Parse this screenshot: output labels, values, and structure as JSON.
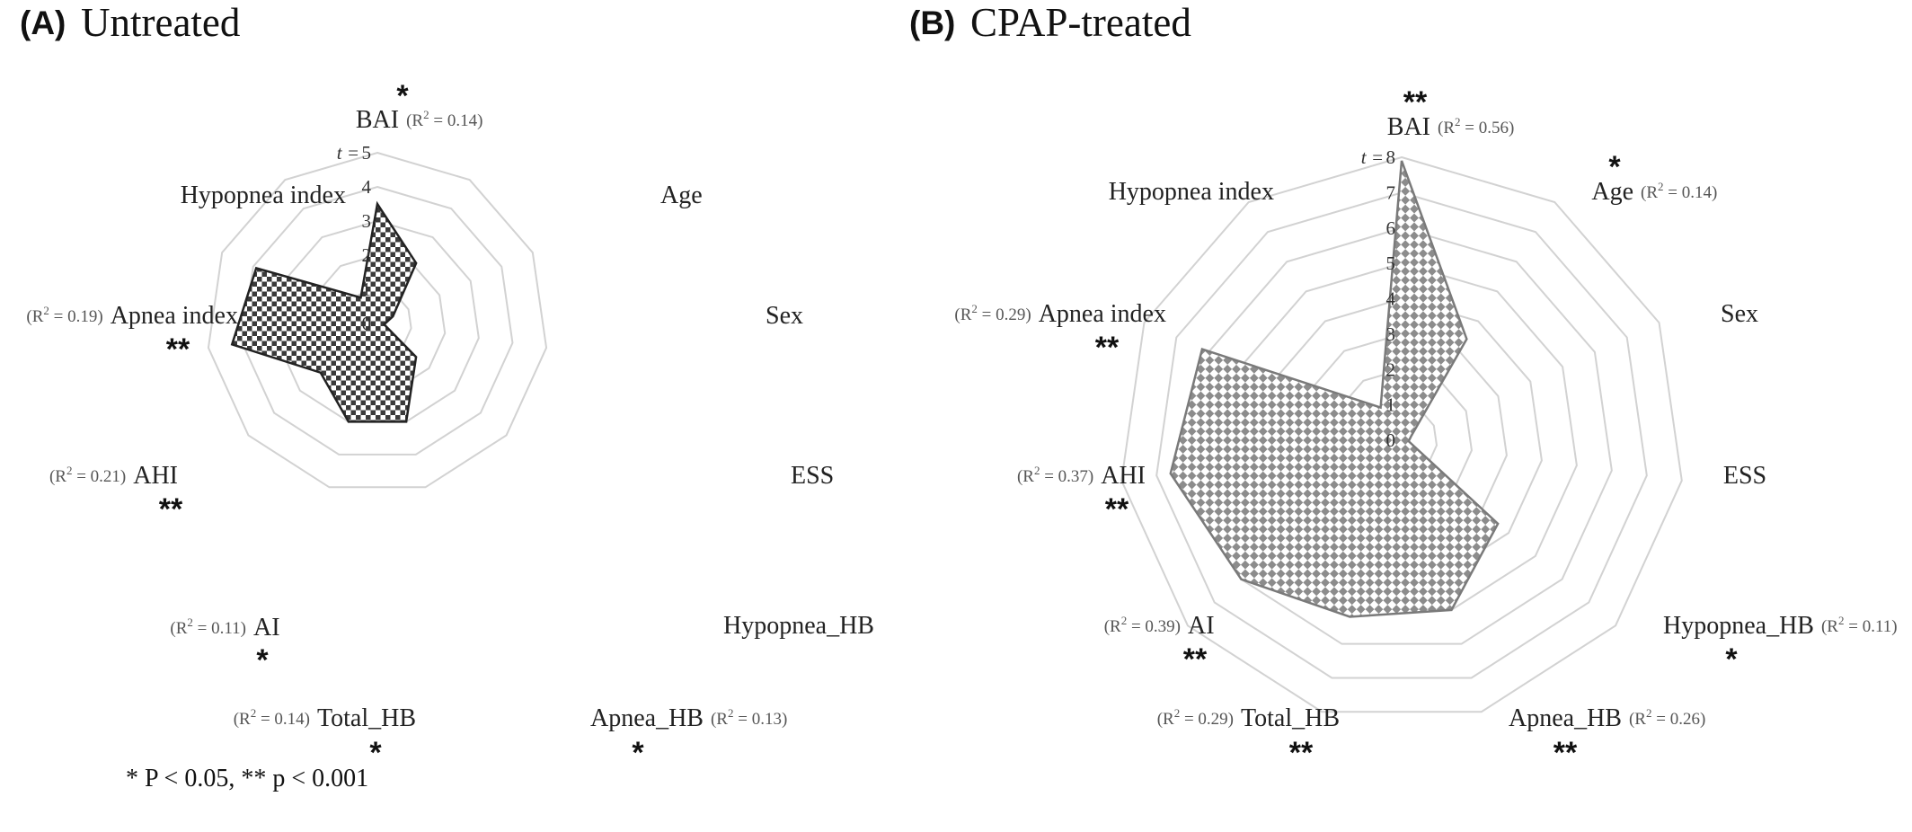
{
  "chart_data": [
    {
      "type": "radar",
      "panel_letter": "(A)",
      "title": "Untreated",
      "scale_prefix": "t =",
      "rlim": [
        0,
        5
      ],
      "ticks": [
        "0",
        "1",
        "2",
        "3",
        "4",
        "5"
      ],
      "grid": true,
      "fill_color": "#3a3a3a",
      "axes": [
        {
          "label": "BAI",
          "value": 3.5,
          "r2": "0.14",
          "sig": "*"
        },
        {
          "label": "Age",
          "value": 2.1,
          "r2": "",
          "sig": ""
        },
        {
          "label": "Sex",
          "value": 0.5,
          "r2": "",
          "sig": ""
        },
        {
          "label": "ESS",
          "value": 0.2,
          "r2": "",
          "sig": ""
        },
        {
          "label": "Hypopnea_HB",
          "value": 1.5,
          "r2": "",
          "sig": ""
        },
        {
          "label": "Apnea_HB",
          "value": 3.0,
          "r2": "0.13",
          "sig": "*"
        },
        {
          "label": "Total_HB",
          "value": 3.0,
          "r2": "0.14",
          "sig": "*"
        },
        {
          "label": "AI",
          "value": 2.2,
          "r2": "0.11",
          "sig": "*"
        },
        {
          "label": "AHI",
          "value": 4.3,
          "r2": "0.21",
          "sig": "**"
        },
        {
          "label": "Apnea index",
          "value": 3.9,
          "r2": "0.19",
          "sig": "**"
        },
        {
          "label": "Hypopnea index",
          "value": 0.9,
          "r2": "",
          "sig": ""
        }
      ]
    },
    {
      "type": "radar",
      "panel_letter": "(B)",
      "title": "CPAP-treated",
      "scale_prefix": "t =",
      "rlim": [
        0,
        8
      ],
      "ticks": [
        "0",
        "1",
        "2",
        "3",
        "4",
        "5",
        "6",
        "7",
        "8"
      ],
      "grid": true,
      "fill_color": "#8c8c8c",
      "axes": [
        {
          "label": "BAI",
          "value": 7.9,
          "r2": "0.56",
          "sig": "**"
        },
        {
          "label": "Age",
          "value": 3.4,
          "r2": "0.14",
          "sig": "*"
        },
        {
          "label": "Sex",
          "value": 0.3,
          "r2": "",
          "sig": ""
        },
        {
          "label": "ESS",
          "value": 0.2,
          "r2": "",
          "sig": ""
        },
        {
          "label": "Hypopnea_HB",
          "value": 3.6,
          "r2": "0.11",
          "sig": "*"
        },
        {
          "label": "Apnea_HB",
          "value": 5.0,
          "r2": "0.26",
          "sig": "**"
        },
        {
          "label": "Total_HB",
          "value": 5.2,
          "r2": "0.29",
          "sig": "**"
        },
        {
          "label": "AI",
          "value": 6.0,
          "r2": "0.39",
          "sig": "**"
        },
        {
          "label": "AHI",
          "value": 6.6,
          "r2": "0.37",
          "sig": "**"
        },
        {
          "label": "Apnea index",
          "value": 6.2,
          "r2": "0.29",
          "sig": "**"
        },
        {
          "label": "Hypopnea index",
          "value": 1.1,
          "r2": "",
          "sig": ""
        }
      ]
    }
  ],
  "footnote": "* P < 0.05, ** p < 0.001"
}
